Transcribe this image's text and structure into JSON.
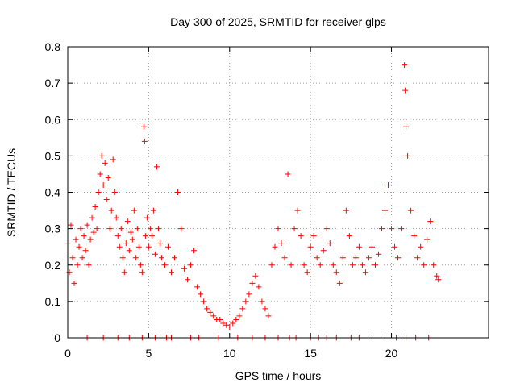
{
  "chart_data": {
    "type": "scatter",
    "title": "Day 300 of 2025, SRMTID for receiver glps",
    "xlabel": "GPS time / hours",
    "ylabel": "SRMTID / TECUs",
    "xlim": [
      0,
      26
    ],
    "ylim": [
      0,
      0.8
    ],
    "xticks": [
      0,
      5,
      10,
      15,
      20
    ],
    "yticks": [
      0,
      0.1,
      0.2,
      0.3,
      0.4,
      0.5,
      0.6,
      0.7,
      0.8
    ],
    "xtick_labels": [
      "0",
      "5",
      "10",
      "15",
      "20"
    ],
    "ytick_labels": [
      "0",
      "0.1",
      "0.2",
      "0.3",
      "0.4",
      "0.5",
      "0.6",
      "0.7",
      "0.8"
    ],
    "grid": true,
    "marker": "plus",
    "color": "#ff0000",
    "series": [
      {
        "name": "SRMTID",
        "points": [
          [
            0.0,
            0.26
          ],
          [
            0.1,
            0.18
          ],
          [
            0.2,
            0.31
          ],
          [
            0.3,
            0.22
          ],
          [
            0.4,
            0.15
          ],
          [
            0.5,
            0.27
          ],
          [
            0.6,
            0.2
          ],
          [
            0.7,
            0.25
          ],
          [
            0.8,
            0.3
          ],
          [
            0.9,
            0.22
          ],
          [
            1.0,
            0.28
          ],
          [
            1.1,
            0.24
          ],
          [
            1.2,
            0.31
          ],
          [
            1.3,
            0.2
          ],
          [
            1.4,
            0.27
          ],
          [
            1.5,
            0.33
          ],
          [
            1.6,
            0.29
          ],
          [
            1.7,
            0.36
          ],
          [
            1.8,
            0.3
          ],
          [
            1.9,
            0.4
          ],
          [
            2.0,
            0.45
          ],
          [
            2.1,
            0.5
          ],
          [
            2.2,
            0.42
          ],
          [
            2.3,
            0.48
          ],
          [
            2.4,
            0.38
          ],
          [
            2.5,
            0.44
          ],
          [
            2.6,
            0.3
          ],
          [
            2.7,
            0.35
          ],
          [
            2.8,
            0.49
          ],
          [
            2.9,
            0.4
          ],
          [
            3.0,
            0.33
          ],
          [
            3.1,
            0.28
          ],
          [
            3.2,
            0.25
          ],
          [
            3.3,
            0.3
          ],
          [
            3.4,
            0.22
          ],
          [
            3.5,
            0.18
          ],
          [
            3.6,
            0.26
          ],
          [
            3.7,
            0.32
          ],
          [
            3.8,
            0.24
          ],
          [
            3.9,
            0.29
          ],
          [
            4.0,
            0.27
          ],
          [
            4.1,
            0.35
          ],
          [
            4.2,
            0.22
          ],
          [
            4.3,
            0.3
          ],
          [
            4.4,
            0.25
          ],
          [
            4.5,
            0.2
          ],
          [
            4.6,
            0.18
          ],
          [
            4.7,
            0.58
          ],
          [
            4.75,
            0.54
          ],
          [
            4.8,
            0.28
          ],
          [
            4.9,
            0.33
          ],
          [
            5.0,
            0.25
          ],
          [
            5.1,
            0.3
          ],
          [
            5.2,
            0.28
          ],
          [
            5.3,
            0.35
          ],
          [
            5.4,
            0.23
          ],
          [
            5.5,
            0.47
          ],
          [
            5.6,
            0.3
          ],
          [
            5.7,
            0.26
          ],
          [
            5.8,
            0.22
          ],
          [
            6.0,
            0.2
          ],
          [
            6.2,
            0.25
          ],
          [
            6.4,
            0.18
          ],
          [
            6.6,
            0.22
          ],
          [
            6.8,
            0.4
          ],
          [
            7.0,
            0.3
          ],
          [
            7.2,
            0.19
          ],
          [
            7.4,
            0.16
          ],
          [
            7.6,
            0.2
          ],
          [
            7.8,
            0.24
          ],
          [
            8.0,
            0.14
          ],
          [
            8.2,
            0.12
          ],
          [
            8.4,
            0.1
          ],
          [
            8.6,
            0.08
          ],
          [
            8.8,
            0.07
          ],
          [
            9.0,
            0.06
          ],
          [
            9.2,
            0.05
          ],
          [
            9.4,
            0.05
          ],
          [
            9.6,
            0.04
          ],
          [
            9.8,
            0.035
          ],
          [
            10.0,
            0.03
          ],
          [
            10.2,
            0.04
          ],
          [
            10.4,
            0.05
          ],
          [
            10.6,
            0.06
          ],
          [
            10.8,
            0.08
          ],
          [
            11.0,
            0.1
          ],
          [
            11.2,
            0.12
          ],
          [
            11.4,
            0.15
          ],
          [
            11.6,
            0.17
          ],
          [
            11.8,
            0.14
          ],
          [
            12.0,
            0.1
          ],
          [
            12.2,
            0.08
          ],
          [
            12.4,
            0.06
          ],
          [
            12.6,
            0.2
          ],
          [
            12.8,
            0.25
          ],
          [
            13.0,
            0.3
          ],
          [
            13.2,
            0.26
          ],
          [
            13.4,
            0.22
          ],
          [
            13.6,
            0.45
          ],
          [
            13.8,
            0.2
          ],
          [
            14.0,
            0.3
          ],
          [
            14.2,
            0.35
          ],
          [
            14.4,
            0.28
          ],
          [
            14.6,
            0.2
          ],
          [
            14.8,
            0.18
          ],
          [
            15.0,
            0.25
          ],
          [
            15.2,
            0.28
          ],
          [
            15.4,
            0.22
          ],
          [
            15.6,
            0.2
          ],
          [
            15.8,
            0.24
          ],
          [
            16.0,
            0.3
          ],
          [
            16.2,
            0.26
          ],
          [
            16.4,
            0.2
          ],
          [
            16.6,
            0.18
          ],
          [
            16.8,
            0.15
          ],
          [
            17.0,
            0.22
          ],
          [
            17.2,
            0.35
          ],
          [
            17.4,
            0.28
          ],
          [
            17.6,
            0.2
          ],
          [
            17.8,
            0.22
          ],
          [
            18.0,
            0.25
          ],
          [
            18.2,
            0.2
          ],
          [
            18.4,
            0.18
          ],
          [
            18.6,
            0.22
          ],
          [
            18.8,
            0.25
          ],
          [
            19.0,
            0.2
          ],
          [
            19.2,
            0.23
          ],
          [
            19.4,
            0.3
          ],
          [
            19.6,
            0.35
          ],
          [
            19.8,
            0.42
          ],
          [
            20.0,
            0.3
          ],
          [
            20.2,
            0.25
          ],
          [
            20.4,
            0.22
          ],
          [
            20.6,
            0.3
          ],
          [
            20.8,
            0.75
          ],
          [
            20.85,
            0.68
          ],
          [
            20.9,
            0.58
          ],
          [
            21.0,
            0.5
          ],
          [
            21.2,
            0.35
          ],
          [
            21.4,
            0.28
          ],
          [
            21.6,
            0.22
          ],
          [
            21.8,
            0.25
          ],
          [
            22.0,
            0.2
          ],
          [
            22.2,
            0.27
          ],
          [
            22.4,
            0.32
          ],
          [
            22.6,
            0.2
          ],
          [
            22.8,
            0.17
          ],
          [
            22.9,
            0.16
          ]
        ],
        "zero_hours": [
          1.2,
          2.2,
          3.1,
          3.8,
          4.6,
          5.4,
          6.1,
          6.4,
          7.6,
          8.1,
          9.3,
          10.5,
          11.4,
          12.2,
          13.0,
          13.7,
          14.1,
          15.0,
          15.5,
          16.0,
          16.6,
          17.5,
          18.0,
          18.8,
          19.6,
          20.3,
          20.9,
          21.5,
          22.3
        ]
      }
    ]
  }
}
